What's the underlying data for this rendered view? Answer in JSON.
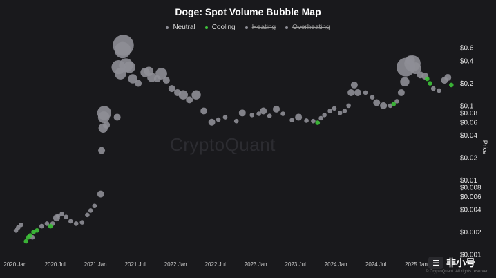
{
  "chart_data": {
    "type": "scatter",
    "title": "Doge: Spot Volume Bubble Map",
    "ylabel": "Price",
    "xlabel": "",
    "yscale": "log",
    "ylim": [
      0.001,
      0.7
    ],
    "xlim": [
      "2019-12-01",
      "2025-07-01"
    ],
    "grid": false,
    "legend_placement": "top-center",
    "legend": [
      {
        "label": "Neutral",
        "color": "#8e8e96",
        "active": true
      },
      {
        "label": "Cooling",
        "color": "#3ec23a",
        "active": true
      },
      {
        "label": "Heating",
        "color": "#8e8e96",
        "active": false
      },
      {
        "label": "Overheating",
        "color": "#8e8e96",
        "active": false
      }
    ],
    "y_ticks": [
      {
        "value": 0.6,
        "label": "$0.6"
      },
      {
        "value": 0.4,
        "label": "$0.4"
      },
      {
        "value": 0.2,
        "label": "$0.2"
      },
      {
        "value": 0.1,
        "label": "$0.1"
      },
      {
        "value": 0.08,
        "label": "$0.08"
      },
      {
        "value": 0.06,
        "label": "$0.06"
      },
      {
        "value": 0.04,
        "label": "$0.04"
      },
      {
        "value": 0.02,
        "label": "$0.02"
      },
      {
        "value": 0.01,
        "label": "$0.01"
      },
      {
        "value": 0.008,
        "label": "$0.008"
      },
      {
        "value": 0.006,
        "label": "$0.006"
      },
      {
        "value": 0.004,
        "label": "$0.004"
      },
      {
        "value": 0.002,
        "label": "$0.002"
      },
      {
        "value": 0.001,
        "label": "$0.001"
      }
    ],
    "x_ticks": [
      {
        "value": "2020-01-01",
        "label": "2020 Jan"
      },
      {
        "value": "2020-07-01",
        "label": "2020 Jul"
      },
      {
        "value": "2021-01-01",
        "label": "2021 Jan"
      },
      {
        "value": "2021-07-01",
        "label": "2021 Jul"
      },
      {
        "value": "2022-01-01",
        "label": "2022 Jan"
      },
      {
        "value": "2022-07-01",
        "label": "2022 Jul"
      },
      {
        "value": "2023-01-01",
        "label": "2023 Jan"
      },
      {
        "value": "2023-07-01",
        "label": "2023 Jul"
      },
      {
        "value": "2024-01-01",
        "label": "2024 Jan"
      },
      {
        "value": "2024-07-01",
        "label": "2024 Jul"
      },
      {
        "value": "2025-01-01",
        "label": "2025 Jan"
      }
    ],
    "series": [
      {
        "name": "Neutral",
        "color": "#8e8e96",
        "points": [
          {
            "x": "2020-01-05",
            "y": 0.0021,
            "size": 1
          },
          {
            "x": "2020-01-15",
            "y": 0.0023,
            "size": 1
          },
          {
            "x": "2020-01-28",
            "y": 0.0025,
            "size": 1
          },
          {
            "x": "2020-03-20",
            "y": 0.0017,
            "size": 1
          },
          {
            "x": "2020-05-01",
            "y": 0.0024,
            "size": 1
          },
          {
            "x": "2020-05-25",
            "y": 0.0026,
            "size": 1
          },
          {
            "x": "2020-06-20",
            "y": 0.0026,
            "size": 1
          },
          {
            "x": "2020-07-08",
            "y": 0.0031,
            "size": 2
          },
          {
            "x": "2020-07-15",
            "y": 0.0033,
            "size": 1
          },
          {
            "x": "2020-08-01",
            "y": 0.0035,
            "size": 1
          },
          {
            "x": "2020-08-20",
            "y": 0.0032,
            "size": 1
          },
          {
            "x": "2020-09-10",
            "y": 0.0028,
            "size": 1
          },
          {
            "x": "2020-10-05",
            "y": 0.0026,
            "size": 1
          },
          {
            "x": "2020-11-01",
            "y": 0.0027,
            "size": 1
          },
          {
            "x": "2020-11-25",
            "y": 0.0034,
            "size": 1
          },
          {
            "x": "2020-12-10",
            "y": 0.0039,
            "size": 1
          },
          {
            "x": "2020-12-28",
            "y": 0.0045,
            "size": 1
          },
          {
            "x": "2021-01-25",
            "y": 0.0065,
            "size": 2
          },
          {
            "x": "2021-01-29",
            "y": 0.025,
            "size": 2
          },
          {
            "x": "2021-02-05",
            "y": 0.05,
            "size": 3
          },
          {
            "x": "2021-02-08",
            "y": 0.07,
            "size": 4
          },
          {
            "x": "2021-02-10",
            "y": 0.08,
            "size": 5
          },
          {
            "x": "2021-02-20",
            "y": 0.055,
            "size": 2
          },
          {
            "x": "2021-04-10",
            "y": 0.07,
            "size": 2
          },
          {
            "x": "2021-04-16",
            "y": 0.33,
            "size": 5
          },
          {
            "x": "2021-04-25",
            "y": 0.27,
            "size": 4
          },
          {
            "x": "2021-05-05",
            "y": 0.56,
            "size": 6
          },
          {
            "x": "2021-05-08",
            "y": 0.65,
            "size": 8
          },
          {
            "x": "2021-05-20",
            "y": 0.35,
            "size": 5
          },
          {
            "x": "2021-06-05",
            "y": 0.33,
            "size": 4
          },
          {
            "x": "2021-06-20",
            "y": 0.23,
            "size": 3
          },
          {
            "x": "2021-07-15",
            "y": 0.2,
            "size": 2
          },
          {
            "x": "2021-08-15",
            "y": 0.28,
            "size": 3
          },
          {
            "x": "2021-09-01",
            "y": 0.29,
            "size": 3
          },
          {
            "x": "2021-09-15",
            "y": 0.24,
            "size": 3
          },
          {
            "x": "2021-10-10",
            "y": 0.23,
            "size": 2
          },
          {
            "x": "2021-10-28",
            "y": 0.27,
            "size": 4
          },
          {
            "x": "2021-11-20",
            "y": 0.22,
            "size": 2
          },
          {
            "x": "2021-12-15",
            "y": 0.17,
            "size": 2
          },
          {
            "x": "2022-01-10",
            "y": 0.15,
            "size": 2
          },
          {
            "x": "2022-02-05",
            "y": 0.14,
            "size": 3
          },
          {
            "x": "2022-03-05",
            "y": 0.12,
            "size": 2
          },
          {
            "x": "2022-04-05",
            "y": 0.14,
            "size": 3
          },
          {
            "x": "2022-05-10",
            "y": 0.085,
            "size": 2
          },
          {
            "x": "2022-06-15",
            "y": 0.06,
            "size": 2
          },
          {
            "x": "2022-07-15",
            "y": 0.065,
            "size": 1
          },
          {
            "x": "2022-08-15",
            "y": 0.07,
            "size": 1
          },
          {
            "x": "2022-10-05",
            "y": 0.062,
            "size": 1
          },
          {
            "x": "2022-11-01",
            "y": 0.08,
            "size": 2
          },
          {
            "x": "2022-12-15",
            "y": 0.075,
            "size": 1
          },
          {
            "x": "2023-01-15",
            "y": 0.078,
            "size": 1
          },
          {
            "x": "2023-02-05",
            "y": 0.085,
            "size": 2
          },
          {
            "x": "2023-03-05",
            "y": 0.073,
            "size": 1
          },
          {
            "x": "2023-04-05",
            "y": 0.09,
            "size": 2
          },
          {
            "x": "2023-05-05",
            "y": 0.078,
            "size": 1
          },
          {
            "x": "2023-06-15",
            "y": 0.064,
            "size": 1
          },
          {
            "x": "2023-07-15",
            "y": 0.07,
            "size": 2
          },
          {
            "x": "2023-08-20",
            "y": 0.063,
            "size": 1
          },
          {
            "x": "2023-09-20",
            "y": 0.062,
            "size": 1
          },
          {
            "x": "2023-10-25",
            "y": 0.068,
            "size": 1
          },
          {
            "x": "2023-11-10",
            "y": 0.075,
            "size": 1
          },
          {
            "x": "2023-12-05",
            "y": 0.085,
            "size": 1
          },
          {
            "x": "2023-12-25",
            "y": 0.092,
            "size": 1
          },
          {
            "x": "2024-01-20",
            "y": 0.08,
            "size": 1
          },
          {
            "x": "2024-02-10",
            "y": 0.085,
            "size": 1
          },
          {
            "x": "2024-02-28",
            "y": 0.1,
            "size": 1
          },
          {
            "x": "2024-03-10",
            "y": 0.15,
            "size": 2
          },
          {
            "x": "2024-03-25",
            "y": 0.19,
            "size": 2
          },
          {
            "x": "2024-04-10",
            "y": 0.15,
            "size": 2
          },
          {
            "x": "2024-05-15",
            "y": 0.15,
            "size": 1
          },
          {
            "x": "2024-06-15",
            "y": 0.13,
            "size": 1
          },
          {
            "x": "2024-07-05",
            "y": 0.11,
            "size": 2
          },
          {
            "x": "2024-08-05",
            "y": 0.1,
            "size": 2
          },
          {
            "x": "2024-09-05",
            "y": 0.1,
            "size": 1
          },
          {
            "x": "2024-10-05",
            "y": 0.115,
            "size": 1
          },
          {
            "x": "2024-10-25",
            "y": 0.15,
            "size": 2
          },
          {
            "x": "2024-11-10",
            "y": 0.21,
            "size": 3
          },
          {
            "x": "2024-11-15",
            "y": 0.33,
            "size": 7
          },
          {
            "x": "2024-12-05",
            "y": 0.41,
            "size": 3
          },
          {
            "x": "2024-12-15",
            "y": 0.37,
            "size": 6
          },
          {
            "x": "2024-12-28",
            "y": 0.32,
            "size": 4
          },
          {
            "x": "2025-01-20",
            "y": 0.26,
            "size": 2
          },
          {
            "x": "2025-02-10",
            "y": 0.25,
            "size": 2
          },
          {
            "x": "2025-03-20",
            "y": 0.17,
            "size": 1
          },
          {
            "x": "2025-04-15",
            "y": 0.16,
            "size": 1
          },
          {
            "x": "2025-05-10",
            "y": 0.22,
            "size": 2
          },
          {
            "x": "2025-05-25",
            "y": 0.24,
            "size": 2
          }
        ]
      },
      {
        "name": "Cooling",
        "color": "#3ec23a",
        "points": [
          {
            "x": "2020-02-20",
            "y": 0.0015,
            "size": 1
          },
          {
            "x": "2020-03-01",
            "y": 0.0017,
            "size": 1
          },
          {
            "x": "2020-03-10",
            "y": 0.0018,
            "size": 1
          },
          {
            "x": "2020-03-25",
            "y": 0.002,
            "size": 1
          },
          {
            "x": "2020-04-10",
            "y": 0.0021,
            "size": 1
          },
          {
            "x": "2020-06-10",
            "y": 0.0024,
            "size": 1
          },
          {
            "x": "2023-10-10",
            "y": 0.059,
            "size": 1
          },
          {
            "x": "2024-09-20",
            "y": 0.105,
            "size": 1
          },
          {
            "x": "2025-02-20",
            "y": 0.23,
            "size": 1
          },
          {
            "x": "2025-03-05",
            "y": 0.2,
            "size": 1
          },
          {
            "x": "2025-06-10",
            "y": 0.19,
            "size": 1
          }
        ]
      }
    ]
  },
  "watermark": "CryptoQuant",
  "copyright": "© CryptoQuant. All rights reserved",
  "brand_logo_text": "非小号"
}
